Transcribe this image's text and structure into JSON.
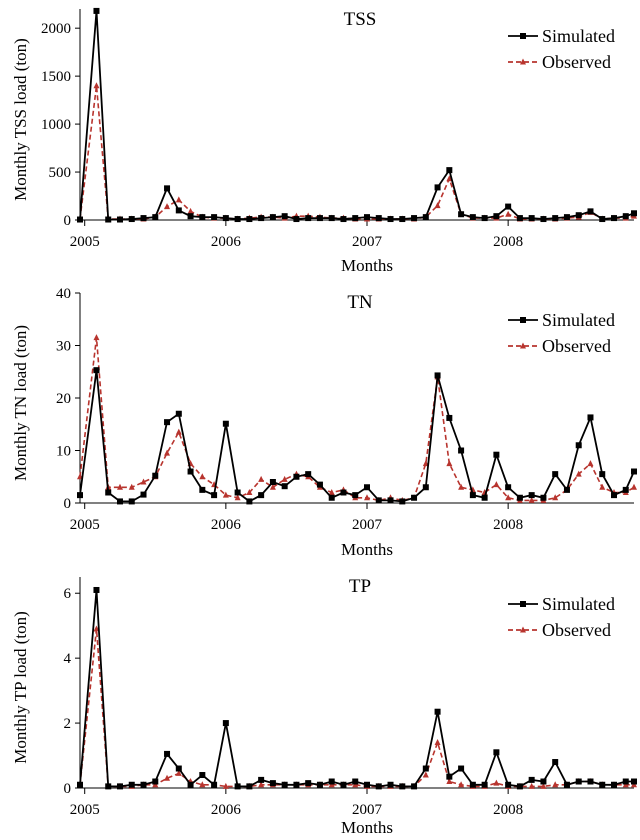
{
  "chart_data": [
    {
      "type": "line",
      "title": "TSS",
      "xlabel": "Months",
      "ylabel": "Monthly  TSS load (ton)",
      "ylim": [
        0,
        2200
      ],
      "yticks": [
        0,
        500,
        1000,
        1500,
        2000
      ],
      "xlim": [
        -0.4,
        46.7
      ],
      "xticks": [
        0,
        12,
        24,
        36
      ],
      "xtick_labels": [
        "2005",
        "2006",
        "2007",
        "2008"
      ],
      "legend_position": "top-right",
      "series": [
        {
          "name": "Simulated",
          "color": "#000000",
          "marker": "square",
          "x": [
            -0.4,
            1,
            2,
            3,
            4,
            5,
            6,
            7,
            8,
            9,
            10,
            11,
            12,
            13,
            14,
            15,
            16,
            17,
            18,
            19,
            20,
            21,
            22,
            23,
            24,
            25,
            26,
            27,
            28,
            29,
            30,
            31,
            32,
            33,
            34,
            35,
            36,
            37,
            38,
            39,
            40,
            41,
            42,
            43,
            44,
            45,
            46,
            46.7
          ],
          "values": [
            5,
            2180,
            5,
            5,
            10,
            20,
            30,
            330,
            100,
            40,
            30,
            30,
            20,
            10,
            10,
            20,
            30,
            40,
            10,
            20,
            20,
            20,
            10,
            20,
            30,
            20,
            10,
            10,
            20,
            30,
            340,
            520,
            60,
            30,
            20,
            40,
            140,
            20,
            20,
            10,
            20,
            30,
            50,
            90,
            10,
            20,
            40,
            70
          ]
        },
        {
          "name": "Observed",
          "color": "#b8342e",
          "marker": "triangle",
          "dashed": true,
          "x": [
            -0.4,
            1,
            2,
            3,
            4,
            5,
            6,
            7,
            8,
            9,
            10,
            11,
            12,
            13,
            14,
            15,
            16,
            17,
            18,
            19,
            20,
            21,
            22,
            23,
            24,
            25,
            26,
            27,
            28,
            29,
            30,
            31,
            32,
            33,
            34,
            35,
            36,
            37,
            38,
            39,
            40,
            41,
            42,
            43,
            44,
            45,
            46,
            46.7
          ],
          "values": [
            10,
            1400,
            10,
            10,
            10,
            10,
            30,
            140,
            210,
            90,
            30,
            20,
            20,
            10,
            20,
            30,
            30,
            20,
            40,
            40,
            30,
            20,
            20,
            10,
            10,
            10,
            10,
            10,
            10,
            30,
            150,
            430,
            60,
            20,
            20,
            20,
            60,
            10,
            10,
            10,
            10,
            20,
            30,
            80,
            10,
            20,
            20,
            40
          ]
        }
      ]
    },
    {
      "type": "line",
      "title": "TN",
      "xlabel": "Months",
      "ylabel": "Monthly  TN load (ton)",
      "ylim": [
        0,
        40
      ],
      "yticks": [
        0,
        10,
        20,
        30,
        40
      ],
      "xlim": [
        -0.4,
        46.7
      ],
      "xticks": [
        0,
        12,
        24,
        36
      ],
      "xtick_labels": [
        "2005",
        "2006",
        "2007",
        "2008"
      ],
      "legend_position": "top-right",
      "series": [
        {
          "name": "Simulated",
          "color": "#000000",
          "marker": "square",
          "x": [
            -0.4,
            1,
            2,
            3,
            4,
            5,
            6,
            7,
            8,
            9,
            10,
            11,
            12,
            13,
            14,
            15,
            16,
            17,
            18,
            19,
            20,
            21,
            22,
            23,
            24,
            25,
            26,
            27,
            28,
            29,
            30,
            31,
            32,
            33,
            34,
            35,
            36,
            37,
            38,
            39,
            40,
            41,
            42,
            43,
            44,
            45,
            46,
            46.7
          ],
          "values": [
            1.5,
            25.3,
            2.0,
            0.3,
            0.3,
            1.6,
            5.2,
            15.4,
            17.0,
            6.0,
            2.5,
            1.5,
            15.1,
            2.0,
            0.3,
            1.5,
            4.0,
            3.2,
            5.0,
            5.5,
            3.5,
            1.0,
            2.0,
            1.5,
            3.0,
            0.5,
            0.5,
            0.3,
            1.0,
            3.0,
            24.3,
            16.2,
            10.0,
            1.5,
            1.0,
            9.2,
            3.0,
            1.0,
            1.5,
            1.0,
            5.5,
            2.5,
            11.0,
            16.3,
            5.5,
            1.5,
            2.5,
            6.0
          ]
        },
        {
          "name": "Observed",
          "color": "#b8342e",
          "marker": "triangle",
          "dashed": true,
          "x": [
            -0.4,
            1,
            2,
            3,
            4,
            5,
            6,
            7,
            8,
            9,
            10,
            11,
            12,
            13,
            14,
            15,
            16,
            17,
            18,
            19,
            20,
            21,
            22,
            23,
            24,
            25,
            26,
            27,
            28,
            29,
            30,
            31,
            32,
            33,
            34,
            35,
            36,
            37,
            38,
            39,
            40,
            41,
            42,
            43,
            44,
            45,
            46,
            46.7
          ],
          "values": [
            5.0,
            31.5,
            3.0,
            3.0,
            3.0,
            4.0,
            5.0,
            9.5,
            13.5,
            7.5,
            5.0,
            3.5,
            1.5,
            1.0,
            2.0,
            4.5,
            3.0,
            4.5,
            5.5,
            5.0,
            3.0,
            2.0,
            2.5,
            1.0,
            1.0,
            0.5,
            1.0,
            0.5,
            1.0,
            7.5,
            24.0,
            7.5,
            3.0,
            2.5,
            2.0,
            3.5,
            1.0,
            0.5,
            0.5,
            0.5,
            1.0,
            2.5,
            5.5,
            7.5,
            3.0,
            2.0,
            2.0,
            3.0
          ]
        }
      ]
    },
    {
      "type": "line",
      "title": "TP",
      "xlabel": "Months",
      "ylabel": "Monthly  TP load (ton)",
      "ylim": [
        0,
        6.5
      ],
      "yticks": [
        0,
        2,
        4,
        6
      ],
      "xlim": [
        -0.4,
        46.7
      ],
      "xticks": [
        0,
        12,
        24,
        36
      ],
      "xtick_labels": [
        "2005",
        "2006",
        "2007",
        "2008"
      ],
      "legend_position": "top-right",
      "series": [
        {
          "name": "Simulated",
          "color": "#000000",
          "marker": "square",
          "x": [
            -0.4,
            1,
            2,
            3,
            4,
            5,
            6,
            7,
            8,
            9,
            10,
            11,
            12,
            13,
            14,
            15,
            16,
            17,
            18,
            19,
            20,
            21,
            22,
            23,
            24,
            25,
            26,
            27,
            28,
            29,
            30,
            31,
            32,
            33,
            34,
            35,
            36,
            37,
            38,
            39,
            40,
            41,
            42,
            43,
            44,
            45,
            46,
            46.7
          ],
          "values": [
            0.1,
            6.1,
            0.05,
            0.05,
            0.1,
            0.1,
            0.2,
            1.05,
            0.6,
            0.1,
            0.4,
            0.1,
            2.0,
            0.05,
            0.05,
            0.25,
            0.15,
            0.1,
            0.1,
            0.15,
            0.1,
            0.2,
            0.1,
            0.2,
            0.1,
            0.05,
            0.1,
            0.05,
            0.05,
            0.6,
            2.35,
            0.35,
            0.6,
            0.1,
            0.1,
            1.1,
            0.1,
            0.05,
            0.25,
            0.2,
            0.8,
            0.1,
            0.2,
            0.2,
            0.1,
            0.1,
            0.2,
            0.2
          ]
        },
        {
          "name": "Observed",
          "color": "#b8342e",
          "marker": "triangle",
          "dashed": true,
          "x": [
            -0.4,
            1,
            2,
            3,
            4,
            5,
            6,
            7,
            8,
            9,
            10,
            11,
            12,
            13,
            14,
            15,
            16,
            17,
            18,
            19,
            20,
            21,
            22,
            23,
            24,
            25,
            26,
            27,
            28,
            29,
            30,
            31,
            32,
            33,
            34,
            35,
            36,
            37,
            38,
            39,
            40,
            41,
            42,
            43,
            44,
            45,
            46,
            46.7
          ],
          "values": [
            0.1,
            4.9,
            0.05,
            0.05,
            0.05,
            0.1,
            0.1,
            0.3,
            0.45,
            0.2,
            0.1,
            0.1,
            0.05,
            0.05,
            0.05,
            0.1,
            0.1,
            0.1,
            0.1,
            0.1,
            0.1,
            0.1,
            0.1,
            0.1,
            0.05,
            0.05,
            0.05,
            0.05,
            0.05,
            0.4,
            1.4,
            0.2,
            0.1,
            0.05,
            0.05,
            0.15,
            0.05,
            0.05,
            0.05,
            0.05,
            0.1,
            0.1,
            0.2,
            0.2,
            0.1,
            0.1,
            0.1,
            0.1
          ]
        }
      ]
    }
  ]
}
